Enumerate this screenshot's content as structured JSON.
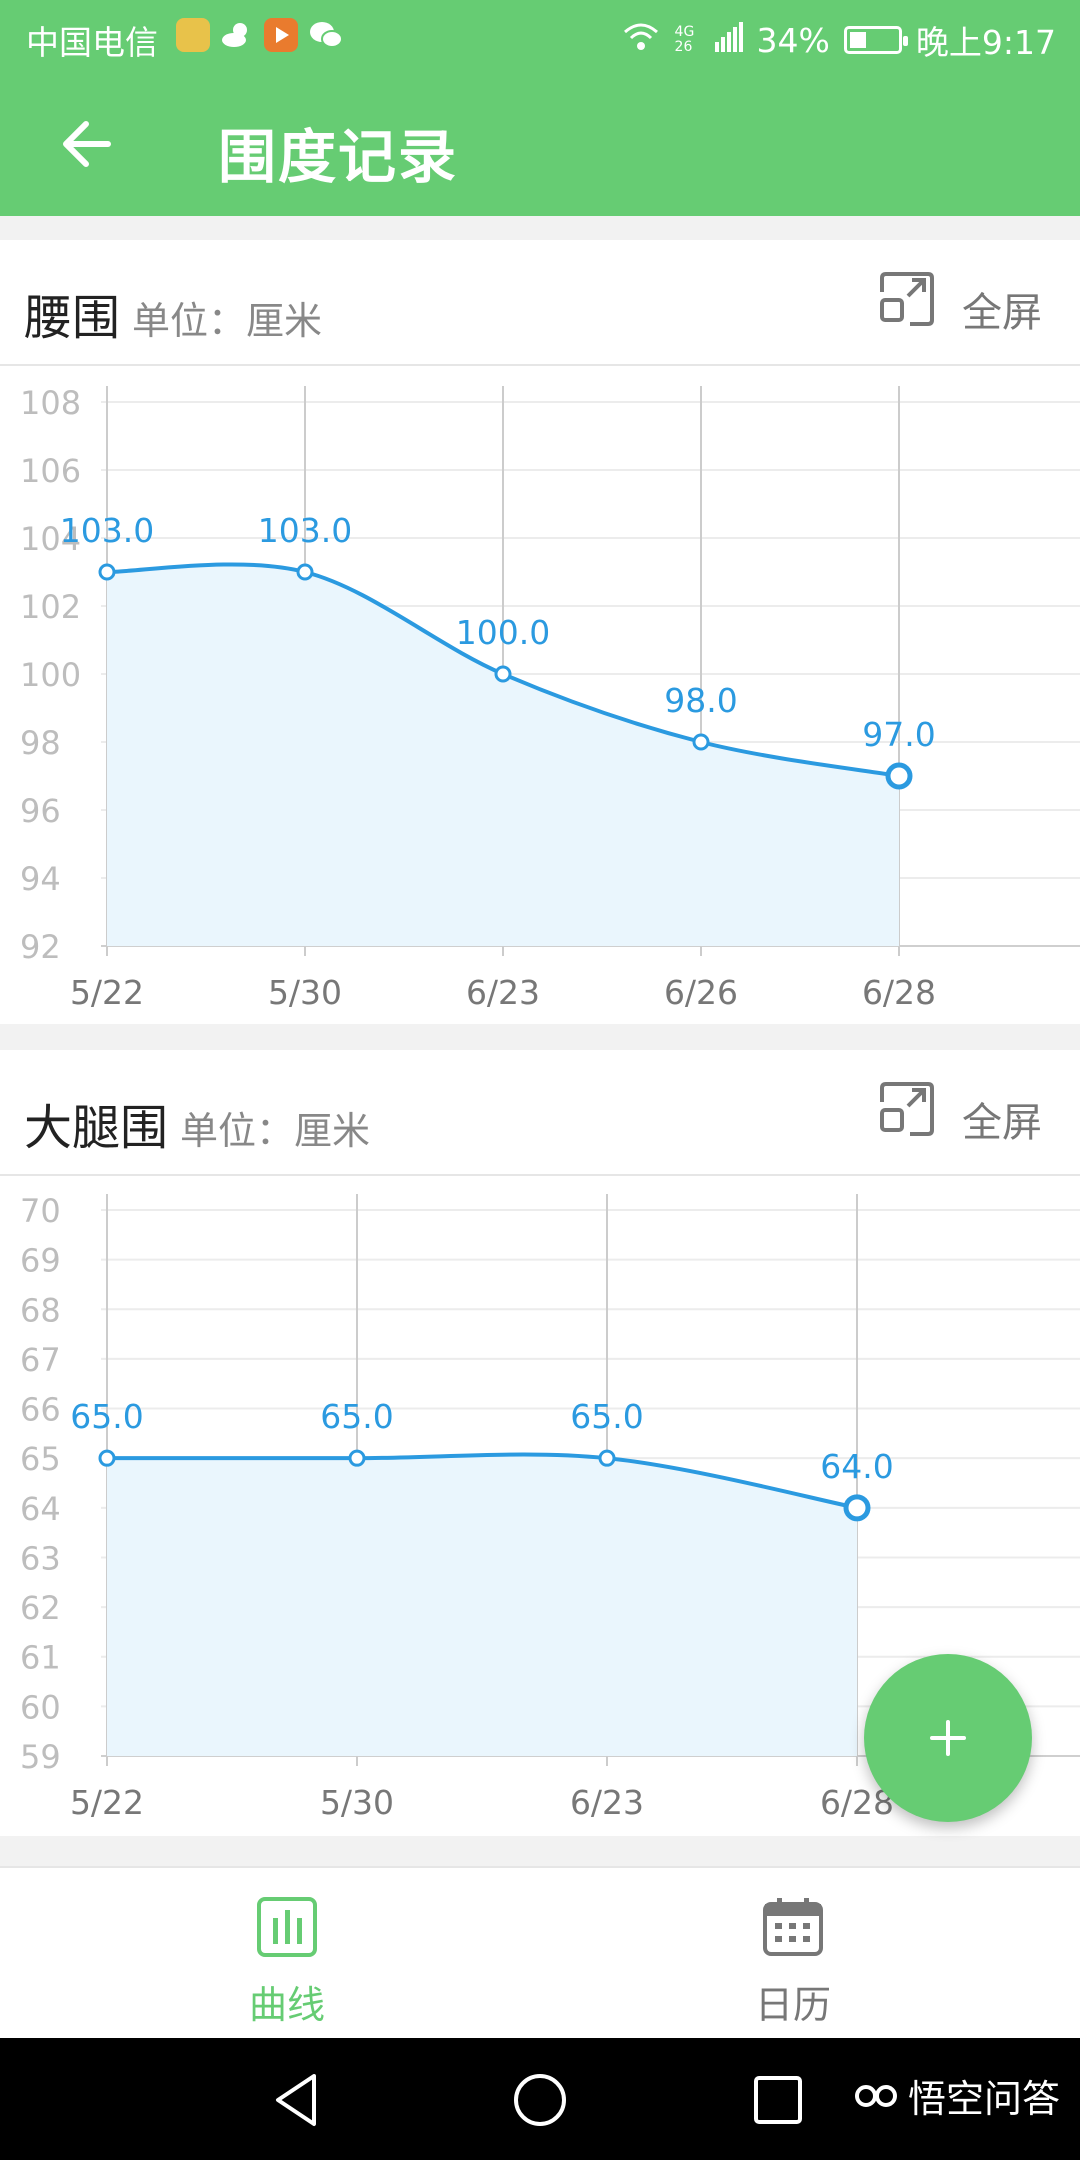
{
  "status_bar": {
    "carrier": "中国电信",
    "network": "4G 26",
    "battery_percent": "34%",
    "battery_level": 0.34,
    "time": "晚上9:17",
    "icons": [
      "notification-app-icon",
      "weather-icon",
      "video-app-icon",
      "wechat-icon",
      "wifi-icon",
      "signal-icon",
      "battery-icon"
    ]
  },
  "app_bar": {
    "title": "围度记录",
    "back_icon": "back-arrow-icon"
  },
  "cards": [
    {
      "title": "腰围",
      "unit": "单位：厘米",
      "fullscreen_label": "全屏"
    },
    {
      "title": "大腿围",
      "unit": "单位：厘米",
      "fullscreen_label": "全屏"
    }
  ],
  "chart_data": [
    {
      "type": "area",
      "title": "腰围",
      "ylabel": "单位：厘米",
      "categories": [
        "5/22",
        "5/30",
        "6/23",
        "6/26",
        "6/28"
      ],
      "values": [
        103.0,
        103.0,
        100.0,
        98.0,
        97.0
      ],
      "data_labels": [
        "103.0",
        "103.0",
        "100.0",
        "98.0",
        "97.0"
      ],
      "yticks": [
        "92",
        "94",
        "96",
        "98",
        "100",
        "102",
        "104",
        "106",
        "108"
      ],
      "ylim": [
        92,
        108
      ],
      "grid": true,
      "color": "#2b9ae0",
      "fill": "#eaf6fd"
    },
    {
      "type": "area",
      "title": "大腿围",
      "ylabel": "单位：厘米",
      "categories": [
        "5/22",
        "5/30",
        "6/23",
        "6/28"
      ],
      "values": [
        65.0,
        65.0,
        65.0,
        64.0
      ],
      "data_labels": [
        "65.0",
        "65.0",
        "65.0",
        "64.0"
      ],
      "yticks": [
        "59",
        "60",
        "61",
        "62",
        "63",
        "64",
        "65",
        "66",
        "67",
        "68",
        "69",
        "70"
      ],
      "ylim": [
        59,
        70
      ],
      "grid": true,
      "color": "#2b9ae0",
      "fill": "#eaf6fd"
    }
  ],
  "fab": {
    "label": "+",
    "icon": "add-icon"
  },
  "bottom_nav": [
    {
      "label": "曲线",
      "icon": "chart-bars-icon",
      "active": true
    },
    {
      "label": "日历",
      "icon": "calendar-icon",
      "active": false
    }
  ],
  "watermark": "悟空问答",
  "colors": {
    "primary": "#66cc73",
    "line": "#2b9ae0",
    "text_muted": "#888888"
  }
}
